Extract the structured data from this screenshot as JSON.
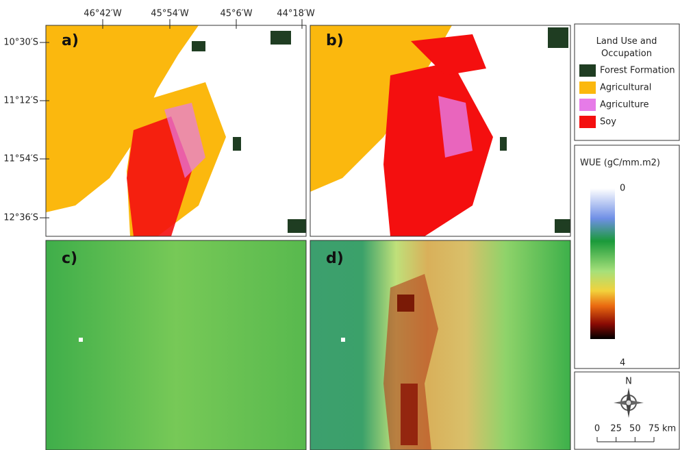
{
  "map": {
    "longitude_labels": [
      "46°42′W",
      "45°54′W",
      "45°6′W",
      "44°18′W"
    ],
    "latitude_labels": [
      "10°30′S",
      "11°12′S",
      "11°54′S",
      "12°36′S"
    ],
    "panels": [
      "a)",
      "b)",
      "c)",
      "d)"
    ],
    "legend": {
      "title": "Land Use and Occupation",
      "items": [
        {
          "label": "Forest Formation",
          "color": "#1f3d22"
        },
        {
          "label": "Agricultural",
          "color": "#fbb80e"
        },
        {
          "label": "Agriculture",
          "color": "#e67be8"
        },
        {
          "label": "Soy",
          "color": "#f40f0f"
        }
      ]
    },
    "colorbar": {
      "title": "WUE (gC/mm.m2)",
      "min": 0,
      "max": 4
    },
    "north": "N",
    "scale": {
      "ticks": [
        0,
        25,
        50,
        75
      ],
      "unit": "km"
    }
  }
}
